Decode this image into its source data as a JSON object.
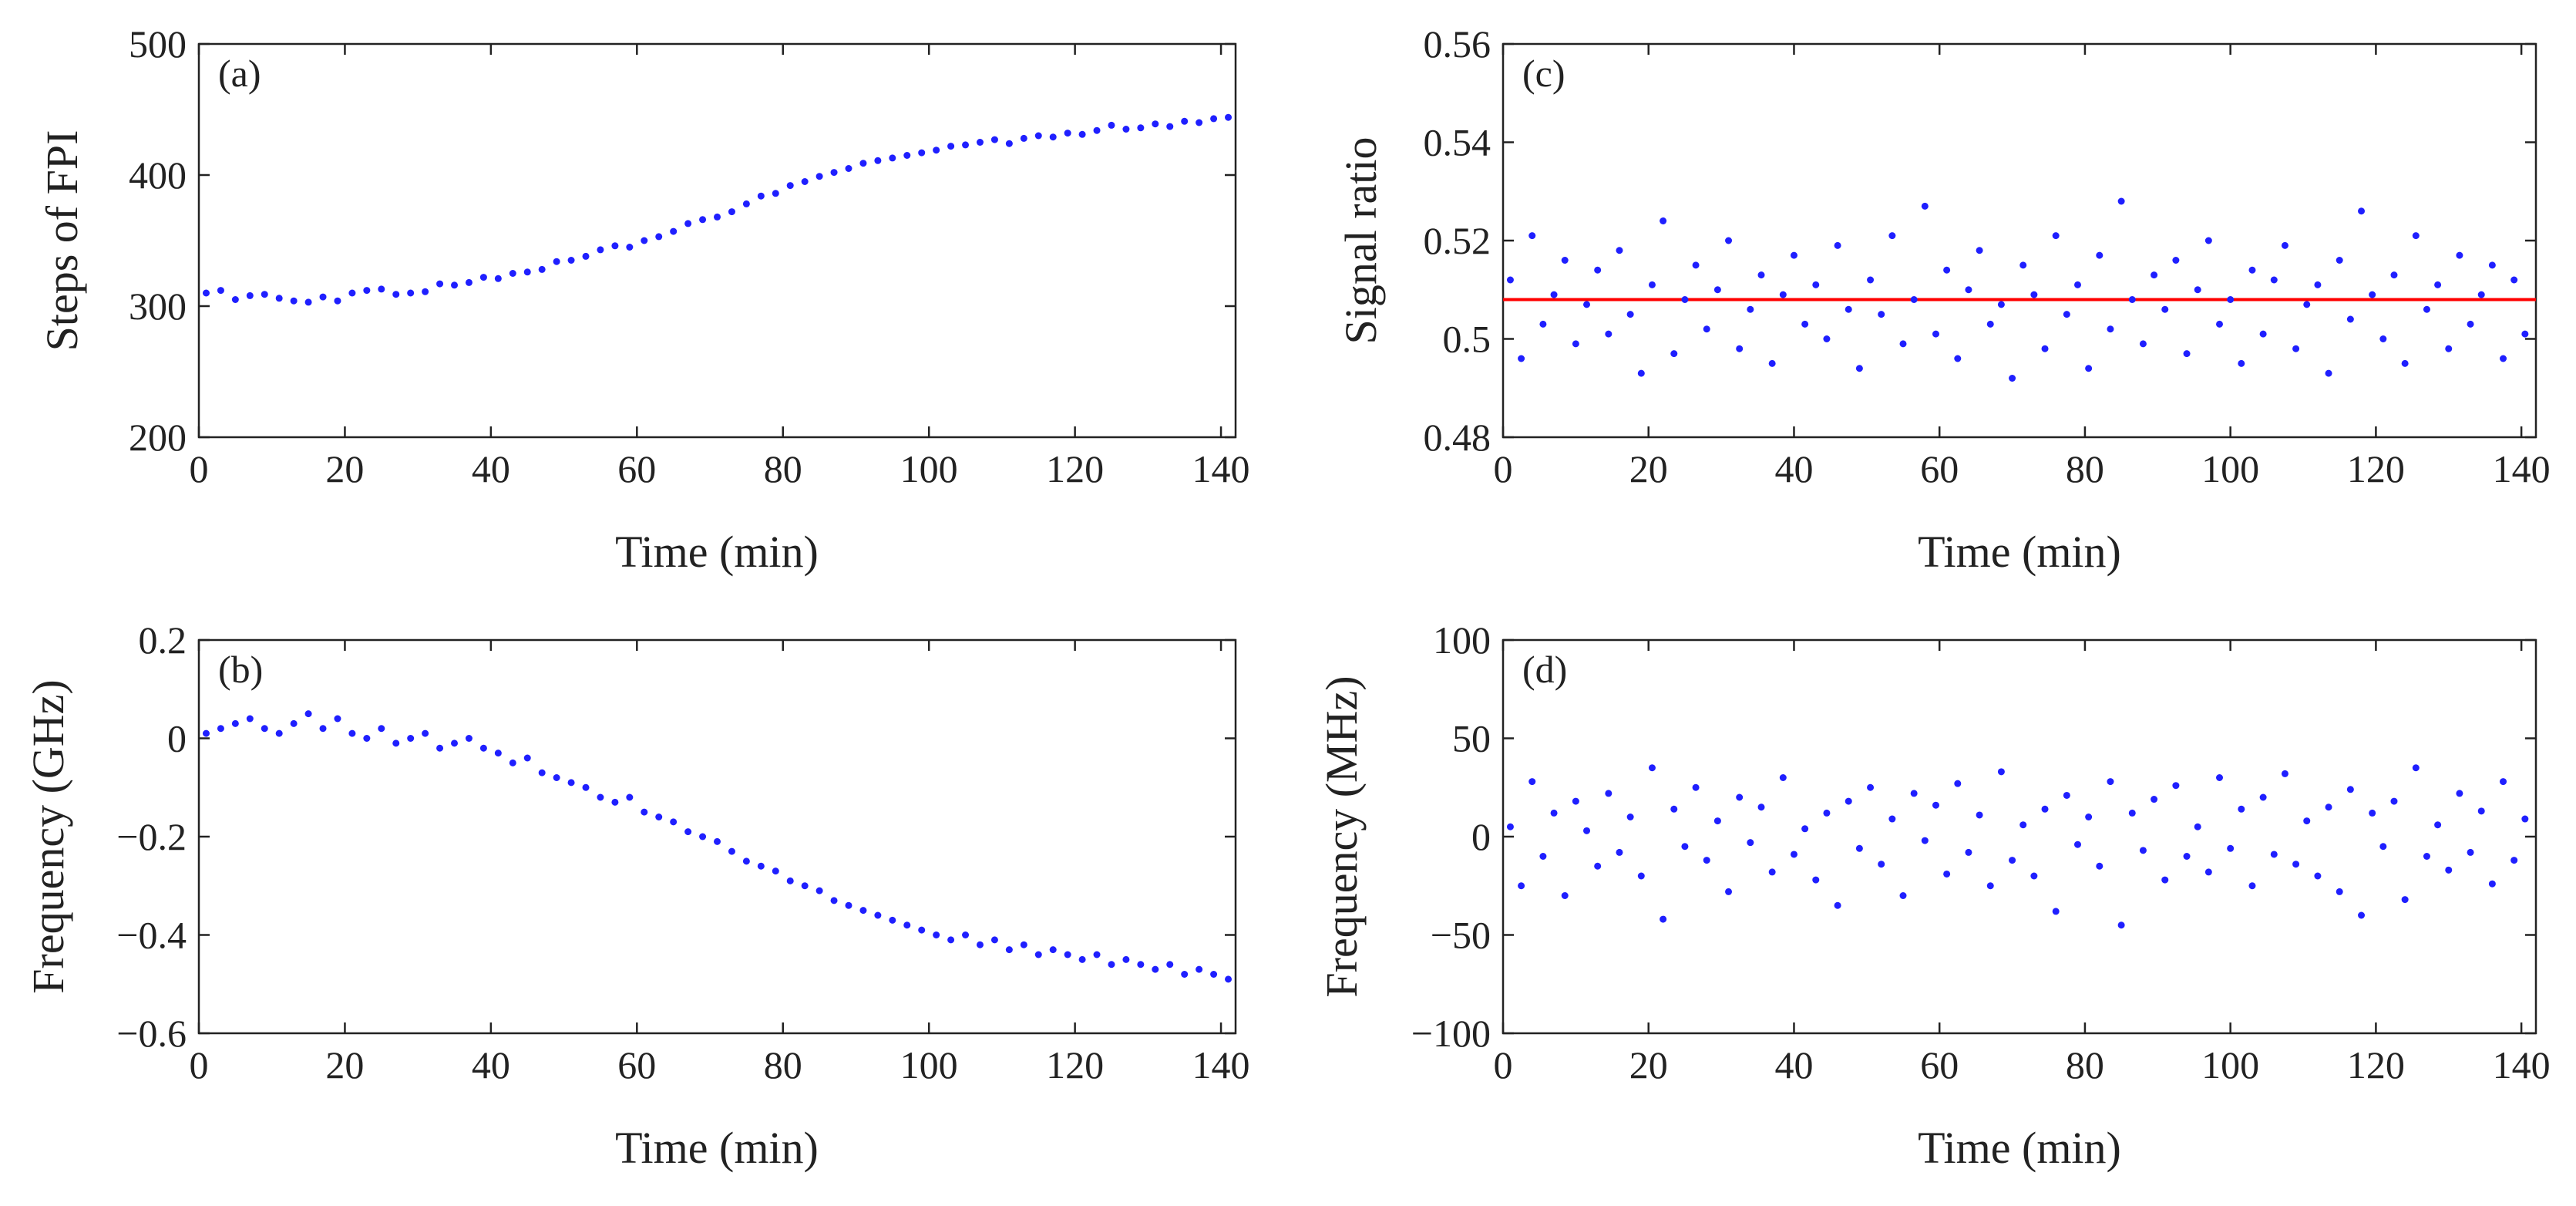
{
  "chart_data": [
    {
      "type": "scatter",
      "panel": "(a)",
      "xlabel": "Time (min)",
      "ylabel": "Steps of FPI",
      "xlim": [
        0,
        142
      ],
      "ylim": [
        200,
        500
      ],
      "xticks": [
        0,
        20,
        40,
        60,
        80,
        100,
        120,
        140
      ],
      "yticks": [
        200,
        300,
        400,
        500
      ],
      "xtick_labels": [
        "0",
        "20",
        "40",
        "60",
        "80",
        "100",
        "120",
        "140"
      ],
      "ytick_labels": [
        "200",
        "300",
        "400",
        "500"
      ],
      "grid": false,
      "marker_color": "#1f1fff",
      "series": [
        {
          "name": "Steps of FPI",
          "x": [
            1,
            3,
            5,
            7,
            9,
            11,
            13,
            15,
            17,
            19,
            21,
            23,
            25,
            27,
            29,
            31,
            33,
            35,
            37,
            39,
            41,
            43,
            45,
            47,
            49,
            51,
            53,
            55,
            57,
            59,
            61,
            63,
            65,
            67,
            69,
            71,
            73,
            75,
            77,
            79,
            81,
            83,
            85,
            87,
            89,
            91,
            93,
            95,
            97,
            99,
            101,
            103,
            105,
            107,
            109,
            111,
            113,
            115,
            117,
            119,
            121,
            123,
            125,
            127,
            129,
            131,
            133,
            135,
            137,
            139,
            141
          ],
          "y": [
            310,
            312,
            305,
            308,
            309,
            306,
            304,
            303,
            307,
            304,
            310,
            312,
            313,
            309,
            310,
            311,
            317,
            316,
            318,
            322,
            321,
            325,
            326,
            328,
            334,
            335,
            338,
            343,
            346,
            345,
            350,
            353,
            357,
            363,
            366,
            368,
            372,
            378,
            384,
            386,
            392,
            395,
            399,
            402,
            405,
            409,
            411,
            413,
            415,
            417,
            419,
            422,
            423,
            425,
            427,
            424,
            428,
            430,
            429,
            432,
            431,
            434,
            438,
            435,
            436,
            439,
            437,
            441,
            440,
            443,
            444
          ]
        }
      ]
    },
    {
      "type": "scatter",
      "panel": "(b)",
      "xlabel": "Time (min)",
      "ylabel": "Frequency (GHz)",
      "xlim": [
        0,
        142
      ],
      "ylim": [
        -0.6,
        0.2
      ],
      "xticks": [
        0,
        20,
        40,
        60,
        80,
        100,
        120,
        140
      ],
      "yticks": [
        -0.6,
        -0.4,
        -0.2,
        0,
        0.2
      ],
      "xtick_labels": [
        "0",
        "20",
        "40",
        "60",
        "80",
        "100",
        "120",
        "140"
      ],
      "ytick_labels": [
        "−0.6",
        "−0.4",
        "−0.2",
        "0",
        "0.2"
      ],
      "grid": false,
      "marker_color": "#1f1fff",
      "series": [
        {
          "name": "Frequency",
          "x": [
            1,
            3,
            5,
            7,
            9,
            11,
            13,
            15,
            17,
            19,
            21,
            23,
            25,
            27,
            29,
            31,
            33,
            35,
            37,
            39,
            41,
            43,
            45,
            47,
            49,
            51,
            53,
            55,
            57,
            59,
            61,
            63,
            65,
            67,
            69,
            71,
            73,
            75,
            77,
            79,
            81,
            83,
            85,
            87,
            89,
            91,
            93,
            95,
            97,
            99,
            101,
            103,
            105,
            107,
            109,
            111,
            113,
            115,
            117,
            119,
            121,
            123,
            125,
            127,
            129,
            131,
            133,
            135,
            137,
            139,
            141
          ],
          "y": [
            0.01,
            0.02,
            0.03,
            0.04,
            0.02,
            0.01,
            0.03,
            0.05,
            0.02,
            0.04,
            0.01,
            0.0,
            0.02,
            -0.01,
            0.0,
            0.01,
            -0.02,
            -0.01,
            0.0,
            -0.02,
            -0.03,
            -0.05,
            -0.04,
            -0.07,
            -0.08,
            -0.09,
            -0.1,
            -0.12,
            -0.13,
            -0.12,
            -0.15,
            -0.16,
            -0.17,
            -0.19,
            -0.2,
            -0.21,
            -0.23,
            -0.25,
            -0.26,
            -0.27,
            -0.29,
            -0.3,
            -0.31,
            -0.33,
            -0.34,
            -0.35,
            -0.36,
            -0.37,
            -0.38,
            -0.39,
            -0.4,
            -0.41,
            -0.4,
            -0.42,
            -0.41,
            -0.43,
            -0.42,
            -0.44,
            -0.43,
            -0.44,
            -0.45,
            -0.44,
            -0.46,
            -0.45,
            -0.46,
            -0.47,
            -0.46,
            -0.48,
            -0.47,
            -0.48,
            -0.49
          ]
        }
      ]
    },
    {
      "type": "scatter",
      "panel": "(c)",
      "xlabel": "Time (min)",
      "ylabel": "Signal ratio",
      "xlim": [
        0,
        142
      ],
      "ylim": [
        0.48,
        0.56
      ],
      "xticks": [
        0,
        20,
        40,
        60,
        80,
        100,
        120,
        140
      ],
      "yticks": [
        0.48,
        0.5,
        0.52,
        0.54,
        0.56
      ],
      "xtick_labels": [
        "0",
        "20",
        "40",
        "60",
        "80",
        "100",
        "120",
        "140"
      ],
      "ytick_labels": [
        "0.48",
        "0.5",
        "0.52",
        "0.54",
        "0.56"
      ],
      "grid": false,
      "marker_color": "#1f1fff",
      "reference_line": {
        "y": 0.508,
        "color": "#ff0000"
      },
      "series": [
        {
          "name": "Signal ratio",
          "x": [
            1,
            2.5,
            4,
            5.5,
            7,
            8.5,
            10,
            11.5,
            13,
            14.5,
            16,
            17.5,
            19,
            20.5,
            22,
            23.5,
            25,
            26.5,
            28,
            29.5,
            31,
            32.5,
            34,
            35.5,
            37,
            38.5,
            40,
            41.5,
            43,
            44.5,
            46,
            47.5,
            49,
            50.5,
            52,
            53.5,
            55,
            56.5,
            58,
            59.5,
            61,
            62.5,
            64,
            65.5,
            67,
            68.5,
            70,
            71.5,
            73,
            74.5,
            76,
            77.5,
            79,
            80.5,
            82,
            83.5,
            85,
            86.5,
            88,
            89.5,
            91,
            92.5,
            94,
            95.5,
            97,
            98.5,
            100,
            101.5,
            103,
            104.5,
            106,
            107.5,
            109,
            110.5,
            112,
            113.5,
            115,
            116.5,
            118,
            119.5,
            121,
            122.5,
            124,
            125.5,
            127,
            128.5,
            130,
            131.5,
            133,
            134.5,
            136,
            137.5,
            139,
            140.5
          ],
          "y": [
            0.512,
            0.496,
            0.521,
            0.503,
            0.509,
            0.516,
            0.499,
            0.507,
            0.514,
            0.501,
            0.518,
            0.505,
            0.493,
            0.511,
            0.524,
            0.497,
            0.508,
            0.515,
            0.502,
            0.51,
            0.52,
            0.498,
            0.506,
            0.513,
            0.495,
            0.509,
            0.517,
            0.503,
            0.511,
            0.5,
            0.519,
            0.506,
            0.494,
            0.512,
            0.505,
            0.521,
            0.499,
            0.508,
            0.527,
            0.501,
            0.514,
            0.496,
            0.51,
            0.518,
            0.503,
            0.507,
            0.492,
            0.515,
            0.509,
            0.498,
            0.521,
            0.505,
            0.511,
            0.494,
            0.517,
            0.502,
            0.528,
            0.508,
            0.499,
            0.513,
            0.506,
            0.516,
            0.497,
            0.51,
            0.52,
            0.503,
            0.508,
            0.495,
            0.514,
            0.501,
            0.512,
            0.519,
            0.498,
            0.507,
            0.511,
            0.493,
            0.516,
            0.504,
            0.526,
            0.509,
            0.5,
            0.513,
            0.495,
            0.521,
            0.506,
            0.511,
            0.498,
            0.517,
            0.503,
            0.509,
            0.515,
            0.496,
            0.512,
            0.501
          ]
        }
      ]
    },
    {
      "type": "scatter",
      "panel": "(d)",
      "xlabel": "Time (min)",
      "ylabel": "Frequency (MHz)",
      "xlim": [
        0,
        142
      ],
      "ylim": [
        -100,
        100
      ],
      "xticks": [
        0,
        20,
        40,
        60,
        80,
        100,
        120,
        140
      ],
      "yticks": [
        -100,
        -50,
        0,
        50,
        100
      ],
      "xtick_labels": [
        "0",
        "20",
        "40",
        "60",
        "80",
        "100",
        "120",
        "140"
      ],
      "ytick_labels": [
        "−100",
        "−50",
        "0",
        "50",
        "100"
      ],
      "grid": false,
      "marker_color": "#1f1fff",
      "series": [
        {
          "name": "Frequency",
          "x": [
            1,
            2.5,
            4,
            5.5,
            7,
            8.5,
            10,
            11.5,
            13,
            14.5,
            16,
            17.5,
            19,
            20.5,
            22,
            23.5,
            25,
            26.5,
            28,
            29.5,
            31,
            32.5,
            34,
            35.5,
            37,
            38.5,
            40,
            41.5,
            43,
            44.5,
            46,
            47.5,
            49,
            50.5,
            52,
            53.5,
            55,
            56.5,
            58,
            59.5,
            61,
            62.5,
            64,
            65.5,
            67,
            68.5,
            70,
            71.5,
            73,
            74.5,
            76,
            77.5,
            79,
            80.5,
            82,
            83.5,
            85,
            86.5,
            88,
            89.5,
            91,
            92.5,
            94,
            95.5,
            97,
            98.5,
            100,
            101.5,
            103,
            104.5,
            106,
            107.5,
            109,
            110.5,
            112,
            113.5,
            115,
            116.5,
            118,
            119.5,
            121,
            122.5,
            124,
            125.5,
            127,
            128.5,
            130,
            131.5,
            133,
            134.5,
            136,
            137.5,
            139,
            140.5
          ],
          "y": [
            5,
            -25,
            28,
            -10,
            12,
            -30,
            18,
            3,
            -15,
            22,
            -8,
            10,
            -20,
            35,
            -42,
            14,
            -5,
            25,
            -12,
            8,
            -28,
            20,
            -3,
            15,
            -18,
            30,
            -9,
            4,
            -22,
            12,
            -35,
            18,
            -6,
            25,
            -14,
            9,
            -30,
            22,
            -2,
            16,
            -19,
            27,
            -8,
            11,
            -25,
            33,
            -12,
            6,
            -20,
            14,
            -38,
            21,
            -4,
            10,
            -15,
            28,
            -45,
            12,
            -7,
            19,
            -22,
            26,
            -10,
            5,
            -18,
            30,
            -6,
            14,
            -25,
            20,
            -9,
            32,
            -14,
            8,
            -20,
            15,
            -28,
            24,
            -40,
            12,
            -5,
            18,
            -32,
            35,
            -10,
            6,
            -17,
            22,
            -8,
            13,
            -24,
            28,
            -12,
            9
          ]
        }
      ]
    }
  ]
}
